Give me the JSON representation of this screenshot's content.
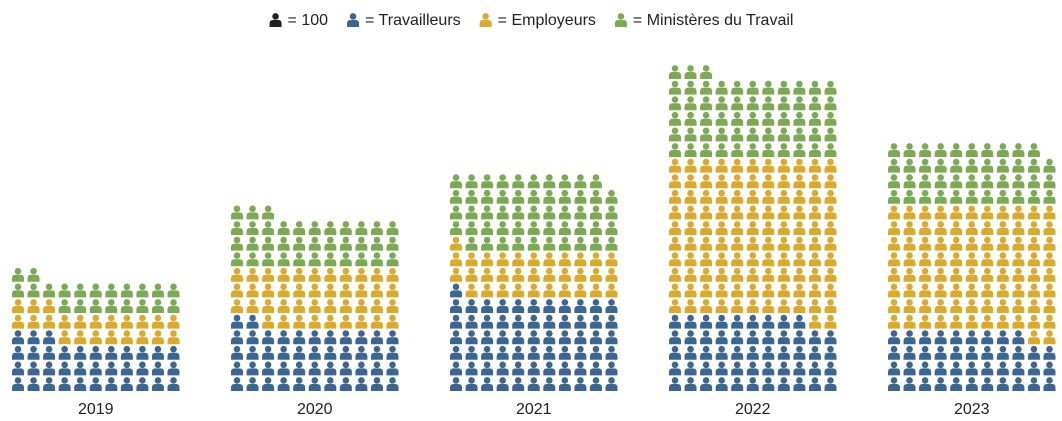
{
  "chart_data": {
    "type": "pictogram",
    "unit": 100,
    "unit_color": "#222222",
    "legend_prefix": "=",
    "categories": [
      "2019",
      "2020",
      "2021",
      "2022",
      "2023"
    ],
    "icons_per_row": 11,
    "series": [
      {
        "name": "Travailleurs",
        "color": "#3b6592",
        "values": [
          3600,
          4600,
          6700,
          5300,
          4200
        ]
      },
      {
        "name": "Employeurs",
        "color": "#dcaa2a",
        "values": [
          2200,
          4200,
          3300,
          11200,
          9000
        ]
      },
      {
        "name": "Ministères du Travail",
        "color": "#7aab52",
        "values": [
          2100,
          3600,
          5300,
          5800,
          4300
        ]
      }
    ]
  }
}
